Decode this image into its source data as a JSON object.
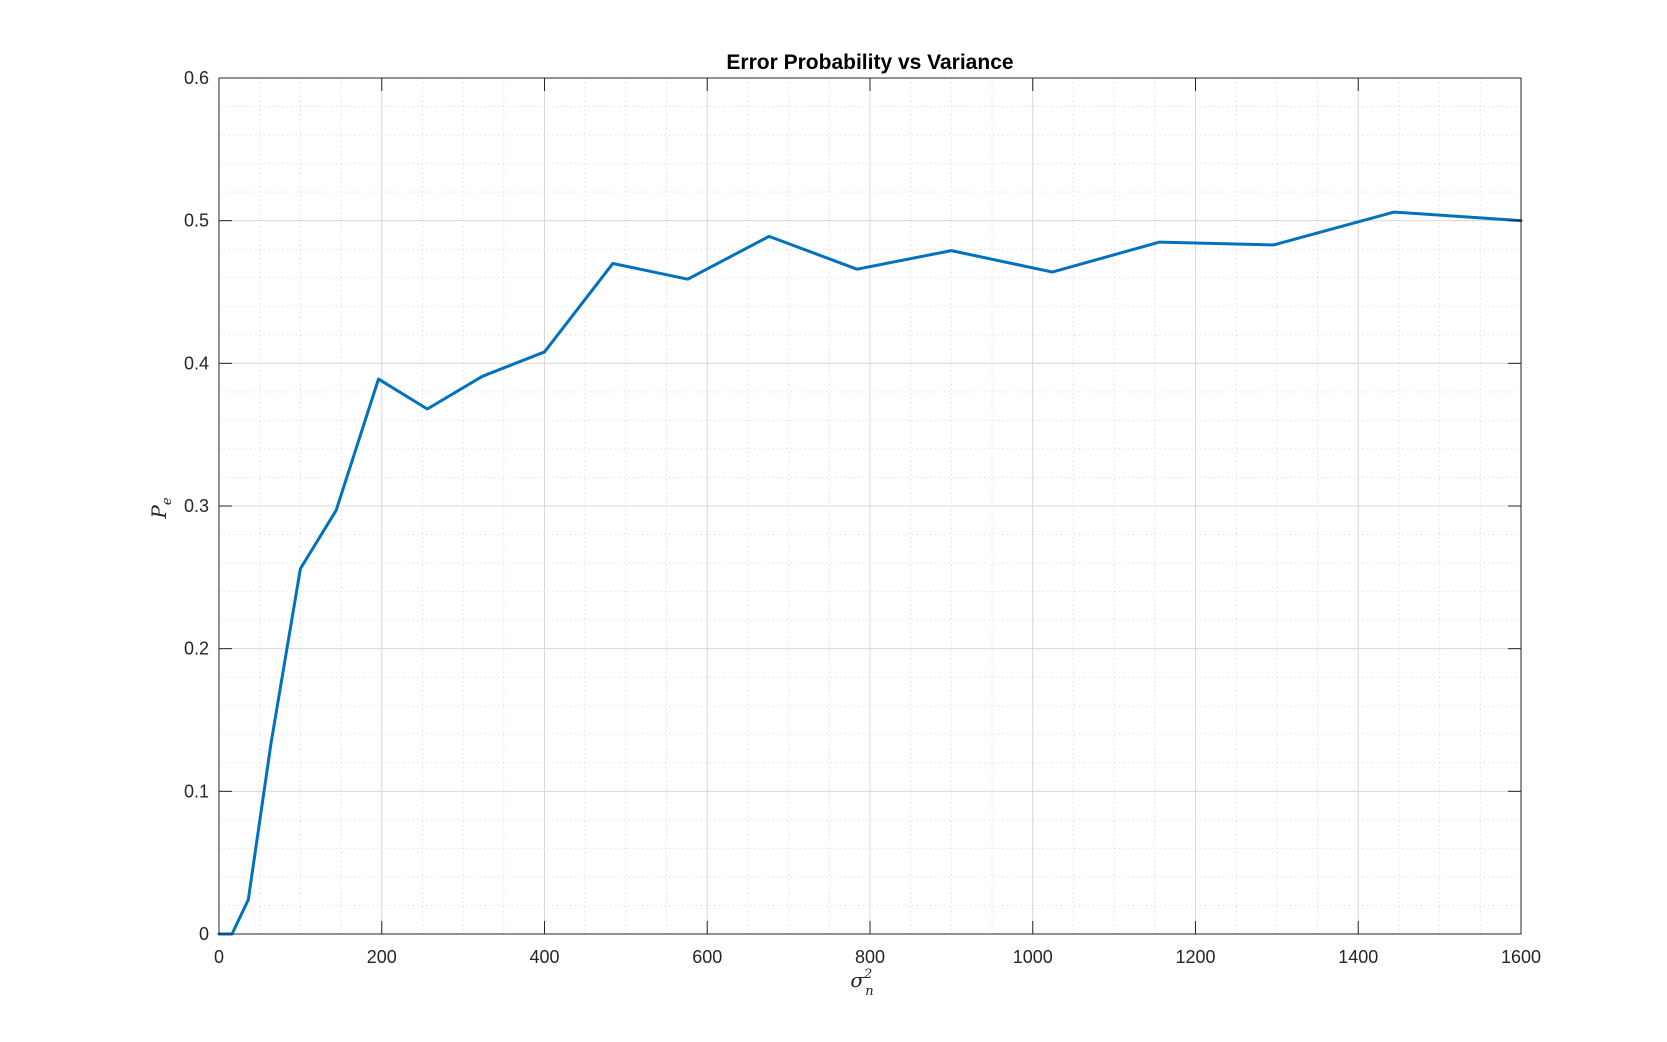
{
  "chart_data": {
    "type": "line",
    "title": "Error Probability vs Variance",
    "xlabel": {
      "base": "σ",
      "sup": "2",
      "sub": "n"
    },
    "ylabel": {
      "base": "P",
      "sub": "e"
    },
    "xlim": [
      0,
      1600
    ],
    "ylim": [
      0,
      0.6
    ],
    "xticks": [
      0,
      200,
      400,
      600,
      800,
      1000,
      1200,
      1400,
      1600
    ],
    "xtick_labels": [
      "0",
      "200",
      "400",
      "600",
      "800",
      "1000",
      "1200",
      "1400",
      "1600"
    ],
    "yticks": [
      0,
      0.1,
      0.2,
      0.3,
      0.4,
      0.5,
      0.6
    ],
    "ytick_labels": [
      "0",
      "0.1",
      "0.2",
      "0.3",
      "0.4",
      "0.5",
      "0.6"
    ],
    "grid": true,
    "minor_grid": true,
    "series": [
      {
        "color": "#0072BD",
        "x": [
          0,
          16,
          36,
          64,
          100,
          144,
          196,
          256,
          324,
          400,
          484,
          576,
          676,
          784,
          900,
          1024,
          1156,
          1296,
          1444,
          1600
        ],
        "y": [
          0,
          0,
          0.024,
          0.134,
          0.256,
          0.297,
          0.389,
          0.368,
          0.391,
          0.408,
          0.47,
          0.459,
          0.489,
          0.466,
          0.479,
          0.464,
          0.485,
          0.483,
          0.506,
          0.5
        ]
      }
    ]
  }
}
